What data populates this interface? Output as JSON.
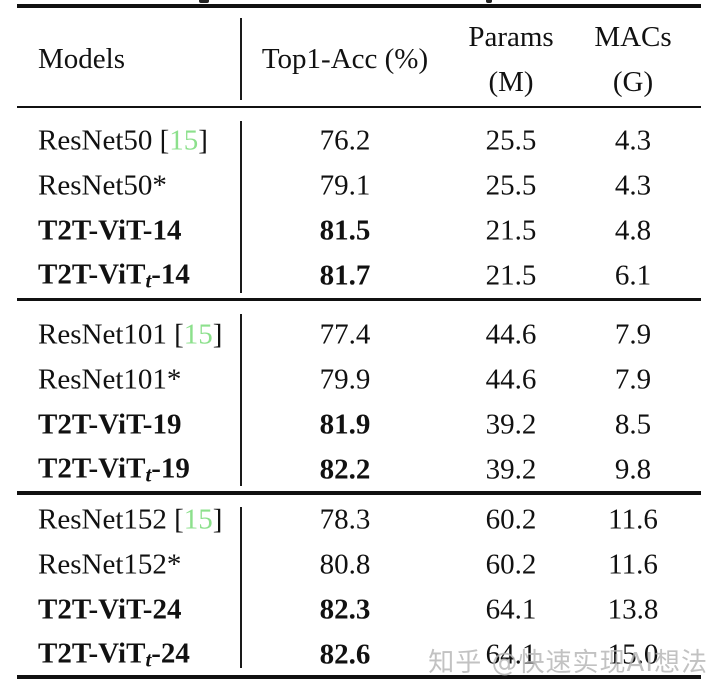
{
  "page": {
    "background": "#ffffff"
  },
  "colors": {
    "text": "#111111",
    "rule": "#111111",
    "ref_green": "#8ce08c",
    "watermark": "#b3b3b3"
  },
  "table": {
    "header": {
      "models": "Models",
      "top1_acc": "Top1-Acc (%)",
      "params_line1": "Params",
      "params_line2": "(M)",
      "macs_line1": "MACs",
      "macs_line2": "(G)"
    },
    "groups": [
      {
        "rows": [
          {
            "pre": "ResNet50",
            "sub": "",
            "post": "",
            "ref": "15",
            "bold": false,
            "acc": "76.2",
            "params": "25.5",
            "macs": "4.3"
          },
          {
            "pre": "ResNet50*",
            "sub": "",
            "post": "",
            "ref": "",
            "bold": false,
            "acc": "79.1",
            "params": "25.5",
            "macs": "4.3"
          },
          {
            "pre": "T2T-ViT-14",
            "sub": "",
            "post": "",
            "ref": "",
            "bold": true,
            "acc": "81.5",
            "params": "21.5",
            "macs": "4.8"
          },
          {
            "pre": "T2T-ViT",
            "sub": "t",
            "post": "-14",
            "ref": "",
            "bold": true,
            "acc": "81.7",
            "params": "21.5",
            "macs": "6.1"
          }
        ]
      },
      {
        "rows": [
          {
            "pre": "ResNet101",
            "sub": "",
            "post": "",
            "ref": "15",
            "bold": false,
            "acc": "77.4",
            "params": "44.6",
            "macs": "7.9"
          },
          {
            "pre": "ResNet101*",
            "sub": "",
            "post": "",
            "ref": "",
            "bold": false,
            "acc": "79.9",
            "params": "44.6",
            "macs": "7.9"
          },
          {
            "pre": "T2T-ViT-19",
            "sub": "",
            "post": "",
            "ref": "",
            "bold": true,
            "acc": "81.9",
            "params": "39.2",
            "macs": "8.5"
          },
          {
            "pre": "T2T-ViT",
            "sub": "t",
            "post": "-19",
            "ref": "",
            "bold": true,
            "acc": "82.2",
            "params": "39.2",
            "macs": "9.8"
          }
        ]
      },
      {
        "rows": [
          {
            "pre": "ResNet152",
            "sub": "",
            "post": "",
            "ref": "15",
            "bold": false,
            "acc": "78.3",
            "params": "60.2",
            "macs": "11.6"
          },
          {
            "pre": "ResNet152*",
            "sub": "",
            "post": "",
            "ref": "",
            "bold": false,
            "acc": "80.8",
            "params": "60.2",
            "macs": "11.6"
          },
          {
            "pre": "T2T-ViT-24",
            "sub": "",
            "post": "",
            "ref": "",
            "bold": true,
            "acc": "82.3",
            "params": "64.1",
            "macs": "13.8"
          },
          {
            "pre": "T2T-ViT",
            "sub": "t",
            "post": "-24",
            "ref": "",
            "bold": true,
            "acc": "82.6",
            "params": "64.1",
            "macs": "15.0"
          }
        ]
      }
    ]
  },
  "watermark": {
    "text": "知乎 @快速实现AI想法"
  }
}
